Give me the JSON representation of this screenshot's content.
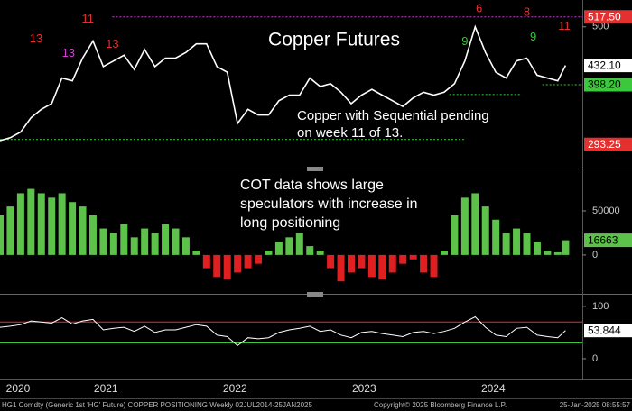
{
  "chart_data": [
    {
      "type": "line",
      "title": "Copper Futures",
      "note": [
        "Copper with Sequential pending",
        "on week 11 of 13."
      ],
      "x": [
        2020.68,
        2020.76,
        2020.84,
        2020.92,
        2021.0,
        2021.08,
        2021.16,
        2021.24,
        2021.32,
        2021.4,
        2021.48,
        2021.56,
        2021.64,
        2021.72,
        2021.8,
        2021.88,
        2021.96,
        2022.04,
        2022.12,
        2022.2,
        2022.28,
        2022.36,
        2022.44,
        2022.52,
        2022.6,
        2022.68,
        2022.76,
        2022.84,
        2022.92,
        2023.0,
        2023.08,
        2023.16,
        2023.24,
        2023.32,
        2023.4,
        2023.48,
        2023.56,
        2023.64,
        2023.72,
        2023.8,
        2023.88,
        2023.96,
        2024.04,
        2024.12,
        2024.2,
        2024.28,
        2024.36,
        2024.44,
        2024.52,
        2024.6,
        2024.68,
        2024.76,
        2024.84,
        2024.92,
        2025.0,
        2025.06
      ],
      "series": [
        {
          "color": "#ffffff",
          "values": [
            300,
            305,
            315,
            340,
            355,
            365,
            410,
            405,
            445,
            475,
            430,
            440,
            450,
            425,
            460,
            430,
            445,
            445,
            455,
            470,
            470,
            430,
            420,
            330,
            355,
            345,
            345,
            370,
            380,
            380,
            410,
            395,
            400,
            385,
            365,
            380,
            390,
            380,
            370,
            360,
            375,
            385,
            380,
            385,
            400,
            440,
            500,
            455,
            420,
            410,
            440,
            445,
            415,
            410,
            405,
            432.1
          ]
        }
      ],
      "xlim": [
        2020.68,
        2025.19
      ],
      "ylim": [
        254,
        544
      ],
      "yticks": [
        500
      ],
      "reference_lines": [
        {
          "value": 517.5,
          "from": 2021.55,
          "to": 2025.19,
          "color": "#d040d0"
        },
        {
          "value": 302,
          "from": 2020.68,
          "to": 2024.28,
          "color": "#3cc83c"
        },
        {
          "value": 381,
          "from": 2024.16,
          "to": 2024.72,
          "color": "#3cc83c"
        },
        {
          "value": 398.2,
          "from": 2024.88,
          "to": 2025.19,
          "color": "#3cc83c"
        }
      ],
      "price_labels": [
        {
          "value": 517.5,
          "label": "517.50",
          "color": "#e53030",
          "text_color": "#ffffff"
        },
        {
          "value": 432.1,
          "label": "432.10",
          "color": "#ffffff",
          "text_color": "#000000"
        },
        {
          "value": 398.2,
          "label": "398.20",
          "color": "#3cc83c",
          "text_color": "#000000"
        },
        {
          "value": 293.25,
          "label": "293.25",
          "color": "#e53030",
          "text_color": "#ffffff"
        }
      ],
      "annotations": [
        {
          "text": "13",
          "x": 2020.96,
          "y": 478,
          "color": "#e53030"
        },
        {
          "text": "13",
          "x": 2021.21,
          "y": 453,
          "color": "#d040d0"
        },
        {
          "text": "11",
          "x": 2021.36,
          "y": 513,
          "color": "#e53030"
        },
        {
          "text": "13",
          "x": 2021.55,
          "y": 469,
          "color": "#e53030"
        },
        {
          "text": "9",
          "x": 2024.28,
          "y": 473,
          "color": "#3cc83c"
        },
        {
          "text": "6",
          "x": 2024.39,
          "y": 531,
          "color": "#e53030"
        },
        {
          "text": "8",
          "x": 2024.76,
          "y": 525,
          "color": "#e53030"
        },
        {
          "text": "9",
          "x": 2024.81,
          "y": 481,
          "color": "#3cc83c"
        },
        {
          "text": "11",
          "x": 2025.05,
          "y": 500,
          "color": "#e53030"
        }
      ]
    },
    {
      "type": "bar",
      "note": [
        "COT data shows large",
        "speculators with increase in",
        "long positioning"
      ],
      "x": [
        2020.68,
        2020.76,
        2020.84,
        2020.92,
        2021.0,
        2021.08,
        2021.16,
        2021.24,
        2021.32,
        2021.4,
        2021.48,
        2021.56,
        2021.64,
        2021.72,
        2021.8,
        2021.88,
        2021.96,
        2022.04,
        2022.12,
        2022.2,
        2022.28,
        2022.36,
        2022.44,
        2022.52,
        2022.6,
        2022.68,
        2022.76,
        2022.84,
        2022.92,
        2023.0,
        2023.08,
        2023.16,
        2023.24,
        2023.32,
        2023.4,
        2023.48,
        2023.56,
        2023.64,
        2023.72,
        2023.8,
        2023.88,
        2023.96,
        2024.04,
        2024.12,
        2024.2,
        2024.28,
        2024.36,
        2024.44,
        2024.52,
        2024.6,
        2024.68,
        2024.76,
        2024.84,
        2024.92,
        2025.0,
        2025.06
      ],
      "values": [
        45000,
        55000,
        70000,
        75000,
        70000,
        65000,
        70000,
        60000,
        55000,
        45000,
        30000,
        25000,
        35000,
        20000,
        30000,
        25000,
        35000,
        30000,
        20000,
        5000,
        -15000,
        -25000,
        -28000,
        -20000,
        -15000,
        -10000,
        5000,
        15000,
        20000,
        25000,
        10000,
        5000,
        -15000,
        -30000,
        -20000,
        -15000,
        -25000,
        -28000,
        -20000,
        -10000,
        -5000,
        -20000,
        -25000,
        5000,
        45000,
        65000,
        70000,
        55000,
        40000,
        25000,
        30000,
        25000,
        15000,
        5000,
        3000,
        16663
      ],
      "color_positive": "#5cc24a",
      "color_negative": "#e02020",
      "xlim": [
        2020.68,
        2025.19
      ],
      "ylim": [
        -40000,
        95000
      ],
      "yticks": [
        0,
        50000
      ],
      "last_label": {
        "value": 16663,
        "label": "16663",
        "color": "#5cc24a"
      }
    },
    {
      "type": "line",
      "x": [
        2020.68,
        2020.76,
        2020.84,
        2020.92,
        2021.0,
        2021.08,
        2021.16,
        2021.24,
        2021.32,
        2021.4,
        2021.48,
        2021.56,
        2021.64,
        2021.72,
        2021.8,
        2021.88,
        2021.96,
        2022.04,
        2022.12,
        2022.2,
        2022.28,
        2022.36,
        2022.44,
        2022.52,
        2022.6,
        2022.68,
        2022.76,
        2022.84,
        2022.92,
        2023.0,
        2023.08,
        2023.16,
        2023.24,
        2023.32,
        2023.4,
        2023.48,
        2023.56,
        2023.64,
        2023.72,
        2023.8,
        2023.88,
        2023.96,
        2024.04,
        2024.12,
        2024.2,
        2024.28,
        2024.36,
        2024.44,
        2024.52,
        2024.6,
        2024.68,
        2024.76,
        2024.84,
        2024.92,
        2025.0,
        2025.06
      ],
      "series": [
        {
          "color": "#ffffff",
          "values": [
            60,
            62,
            65,
            72,
            70,
            68,
            78,
            66,
            72,
            75,
            55,
            58,
            60,
            52,
            62,
            50,
            55,
            55,
            60,
            65,
            62,
            45,
            42,
            25,
            40,
            38,
            40,
            50,
            55,
            58,
            62,
            52,
            55,
            45,
            40,
            50,
            52,
            48,
            45,
            42,
            50,
            52,
            48,
            52,
            58,
            70,
            80,
            60,
            45,
            42,
            58,
            60,
            45,
            42,
            40,
            53.844
          ]
        }
      ],
      "xlim": [
        2020.68,
        2025.19
      ],
      "ylim": [
        -38,
        117
      ],
      "yticks": [
        0,
        100
      ],
      "reference_lines": [
        {
          "value": 70,
          "from": 2020.68,
          "to": 2025.19,
          "color": "#e53030"
        },
        {
          "value": 30,
          "from": 2020.68,
          "to": 2025.19,
          "color": "#3cc83c"
        }
      ],
      "last_label": {
        "value": 53.844,
        "label": "53.844",
        "color": "#ffffff"
      },
      "xticks": [
        {
          "value": 2020.82,
          "label": "2020"
        },
        {
          "value": 2021.5,
          "label": "2021"
        },
        {
          "value": 2022.5,
          "label": "2022"
        },
        {
          "value": 2023.5,
          "label": "2023"
        },
        {
          "value": 2024.5,
          "label": "2024"
        }
      ]
    }
  ],
  "footer": {
    "left": "HG1 Comdty (Generic 1st 'HG' Future) COPPER POSITIONING  Weekly 02JUL2014-25JAN2025",
    "center": "Copyright© 2025 Bloomberg Finance L.P.",
    "right": "25-Jan-2025 08:55:57"
  }
}
